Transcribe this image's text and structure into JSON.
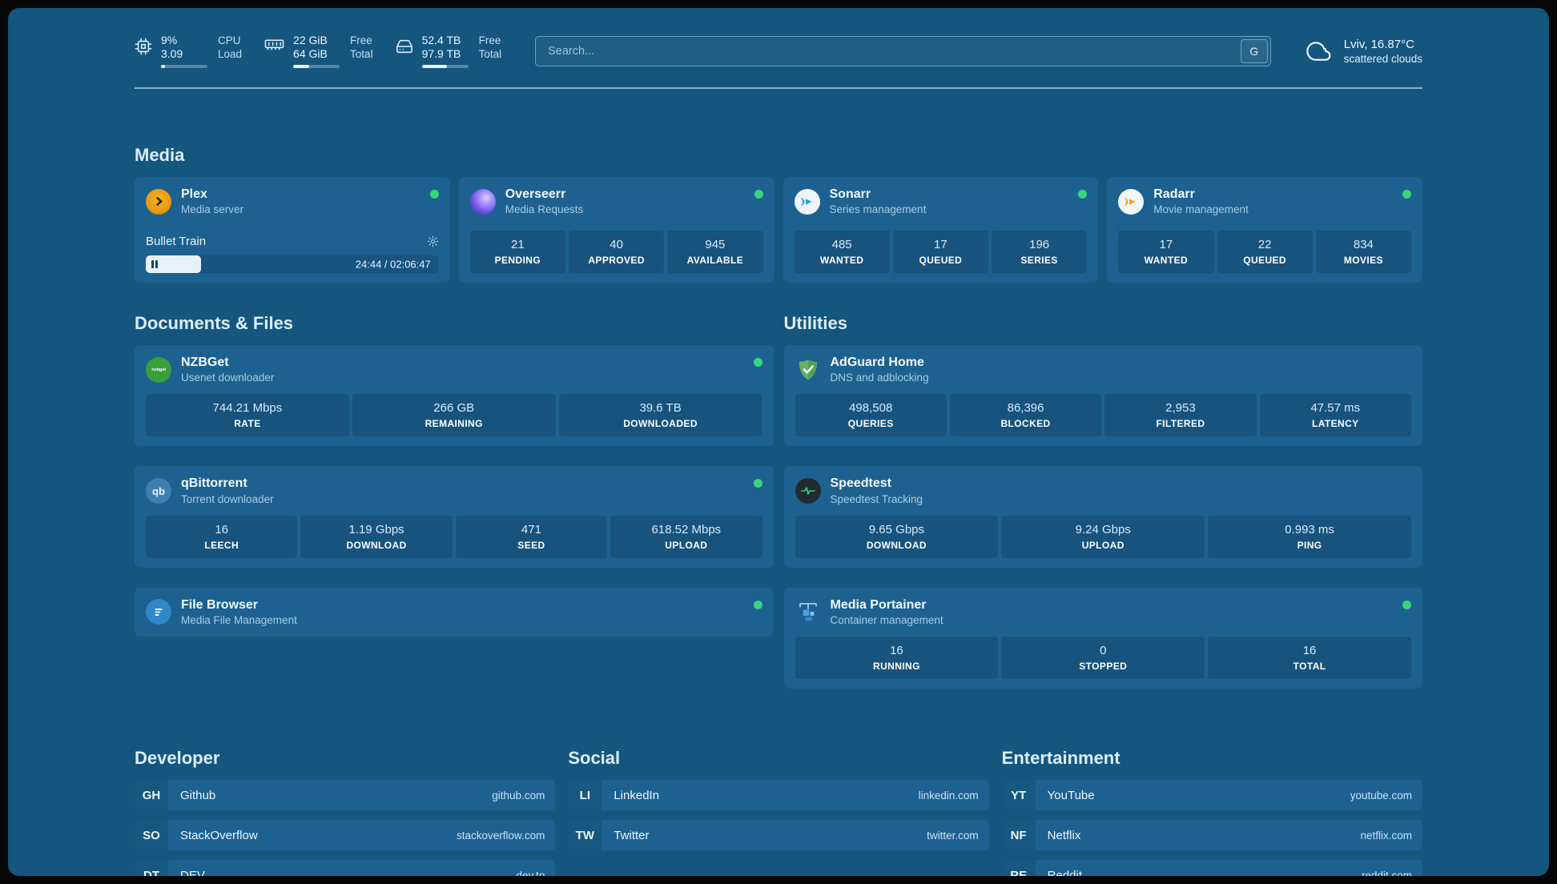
{
  "topbar": {
    "cpu": {
      "value1": "9%",
      "value2": "3.09",
      "label1": "CPU",
      "label2": "Load",
      "bar_percent": 9
    },
    "ram": {
      "value1": "22 GiB",
      "value2": "64 GiB",
      "label1": "Free",
      "label2": "Total",
      "bar_percent": 34
    },
    "disk": {
      "value1": "52.4 TB",
      "value2": "97.9 TB",
      "label1": "Free",
      "label2": "Total",
      "bar_percent": 54
    },
    "search": {
      "placeholder": "Search...",
      "button_label": "G"
    },
    "weather": {
      "location": "Lviv, 16.87°C",
      "condition": "scattered clouds"
    }
  },
  "media": {
    "title": "Media",
    "plex": {
      "name": "Plex",
      "desc": "Media server",
      "now_playing": "Bullet Train",
      "time": "24:44 / 02:06:47",
      "progress_percent": 19
    },
    "overseerr": {
      "name": "Overseerr",
      "desc": "Media Requests",
      "stats": [
        {
          "value": "21",
          "label": "PENDING"
        },
        {
          "value": "40",
          "label": "APPROVED"
        },
        {
          "value": "945",
          "label": "AVAILABLE"
        }
      ]
    },
    "sonarr": {
      "name": "Sonarr",
      "desc": "Series management",
      "stats": [
        {
          "value": "485",
          "label": "WANTED"
        },
        {
          "value": "17",
          "label": "QUEUED"
        },
        {
          "value": "196",
          "label": "SERIES"
        }
      ]
    },
    "radarr": {
      "name": "Radarr",
      "desc": "Movie management",
      "stats": [
        {
          "value": "17",
          "label": "WANTED"
        },
        {
          "value": "22",
          "label": "QUEUED"
        },
        {
          "value": "834",
          "label": "MOVIES"
        }
      ]
    }
  },
  "documents": {
    "title": "Documents & Files",
    "nzbget": {
      "name": "NZBGet",
      "desc": "Usenet downloader",
      "icon_label": "nzbget",
      "stats": [
        {
          "value": "744.21 Mbps",
          "label": "RATE"
        },
        {
          "value": "266 GB",
          "label": "REMAINING"
        },
        {
          "value": "39.6 TB",
          "label": "DOWNLOADED"
        }
      ]
    },
    "qbittorrent": {
      "name": "qBittorrent",
      "desc": "Torrent downloader",
      "icon_label": "qb",
      "stats": [
        {
          "value": "16",
          "label": "LEECH"
        },
        {
          "value": "1.19 Gbps",
          "label": "DOWNLOAD"
        },
        {
          "value": "471",
          "label": "SEED"
        },
        {
          "value": "618.52 Mbps",
          "label": "UPLOAD"
        }
      ]
    },
    "filebrowser": {
      "name": "File Browser",
      "desc": "Media File Management"
    }
  },
  "utilities": {
    "title": "Utilities",
    "adguard": {
      "name": "AdGuard Home",
      "desc": "DNS and adblocking",
      "stats": [
        {
          "value": "498,508",
          "label": "QUERIES"
        },
        {
          "value": "86,396",
          "label": "BLOCKED"
        },
        {
          "value": "2,953",
          "label": "FILTERED"
        },
        {
          "value": "47.57 ms",
          "label": "LATENCY"
        }
      ]
    },
    "speedtest": {
      "name": "Speedtest",
      "desc": "Speedtest Tracking",
      "stats": [
        {
          "value": "9.65 Gbps",
          "label": "DOWNLOAD"
        },
        {
          "value": "9.24 Gbps",
          "label": "UPLOAD"
        },
        {
          "value": "0.993 ms",
          "label": "PING"
        }
      ]
    },
    "portainer": {
      "name": "Media Portainer",
      "desc": "Container management",
      "stats": [
        {
          "value": "16",
          "label": "RUNNING"
        },
        {
          "value": "0",
          "label": "STOPPED"
        },
        {
          "value": "16",
          "label": "TOTAL"
        }
      ]
    }
  },
  "bookmarks": [
    {
      "title": "Developer",
      "items": [
        {
          "abbr": "GH",
          "name": "Github",
          "url": "github.com"
        },
        {
          "abbr": "SO",
          "name": "StackOverflow",
          "url": "stackoverflow.com"
        },
        {
          "abbr": "DT",
          "name": "DEV",
          "url": "dev.to"
        }
      ]
    },
    {
      "title": "Social",
      "items": [
        {
          "abbr": "LI",
          "name": "LinkedIn",
          "url": "linkedin.com"
        },
        {
          "abbr": "TW",
          "name": "Twitter",
          "url": "twitter.com"
        }
      ]
    },
    {
      "title": "Entertainment",
      "items": [
        {
          "abbr": "YT",
          "name": "YouTube",
          "url": "youtube.com"
        },
        {
          "abbr": "NF",
          "name": "Netflix",
          "url": "netflix.com"
        },
        {
          "abbr": "RE",
          "name": "Reddit",
          "url": "reddit.com"
        }
      ]
    }
  ],
  "colors": {
    "background": "#15567f",
    "card": "#1d6190",
    "status_online": "#37d67a",
    "plex_orange": "#e79a12",
    "overseerr_purple": "#6a4fe0",
    "sonarr_blue": "#1e9be0",
    "radarr_orange": "#f7a01e",
    "nzbget_green": "#37a03a",
    "qbittorrent_blue": "#3f7fae",
    "adguard_green": "#67b368",
    "speedtest_wave_green": "#35d07f",
    "filebrowser_blue": "#2f88c7"
  }
}
